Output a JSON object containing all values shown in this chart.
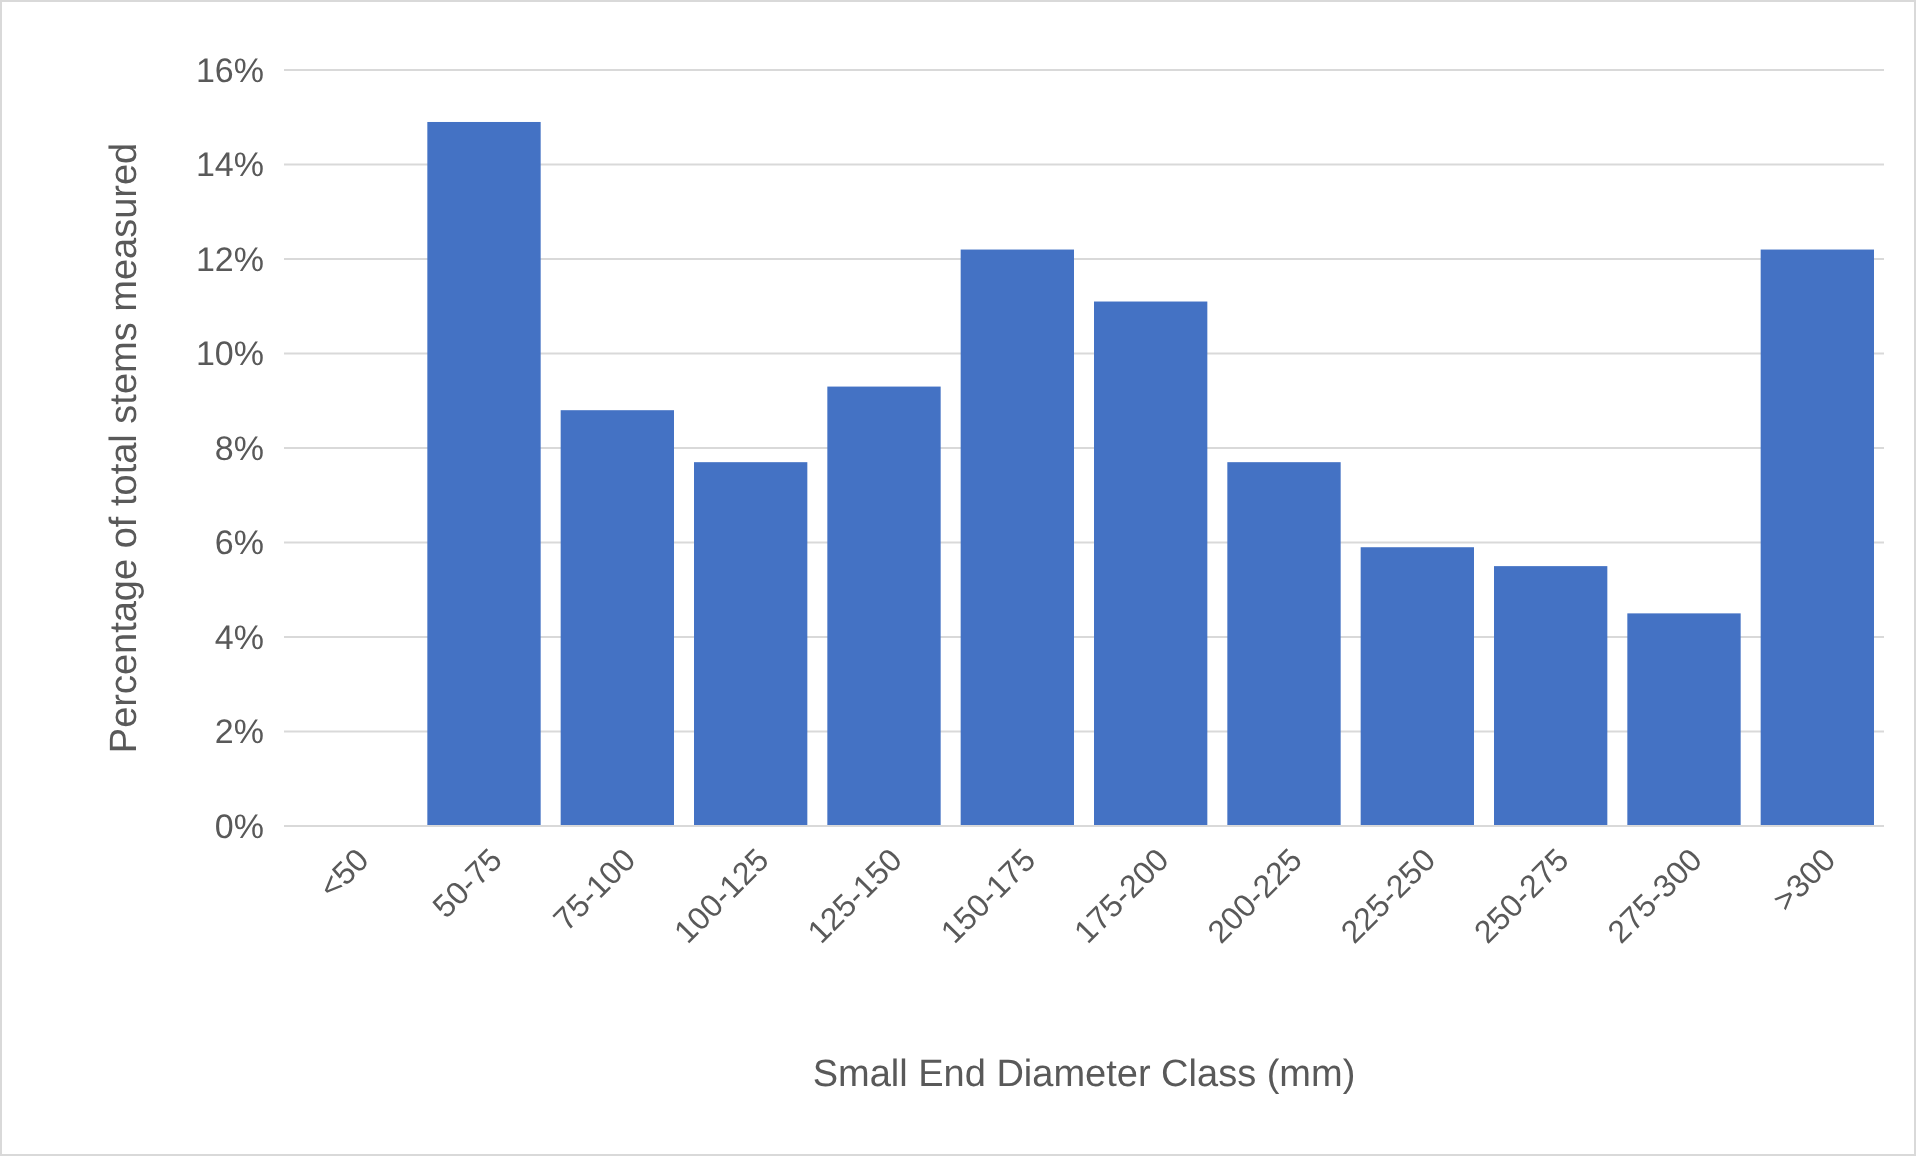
{
  "chart_data": {
    "type": "bar",
    "xlabel": "Small End Diameter Class (mm)",
    "ylabel": "Percentage of total stems measured",
    "categories": [
      "<50",
      "50-75",
      "75-100",
      "100-125",
      "125-150",
      "150-175",
      "175-200",
      "200-225",
      "225-250",
      "250-275",
      "275-300",
      ">300"
    ],
    "values": [
      0,
      14.9,
      8.8,
      7.7,
      9.3,
      12.2,
      11.1,
      7.7,
      5.9,
      5.5,
      4.5,
      12.2
    ],
    "color": "#4472c4",
    "ylim": [
      0,
      16
    ],
    "yticks": [
      {
        "value": 0,
        "label": "0%"
      },
      {
        "value": 2,
        "label": "2%"
      },
      {
        "value": 4,
        "label": "4%"
      },
      {
        "value": 6,
        "label": "6%"
      },
      {
        "value": 8,
        "label": "8%"
      },
      {
        "value": 10,
        "label": "10%"
      },
      {
        "value": 12,
        "label": "12%"
      },
      {
        "value": 14,
        "label": "14%"
      },
      {
        "value": 16,
        "label": "16%"
      }
    ],
    "grid": "y"
  }
}
